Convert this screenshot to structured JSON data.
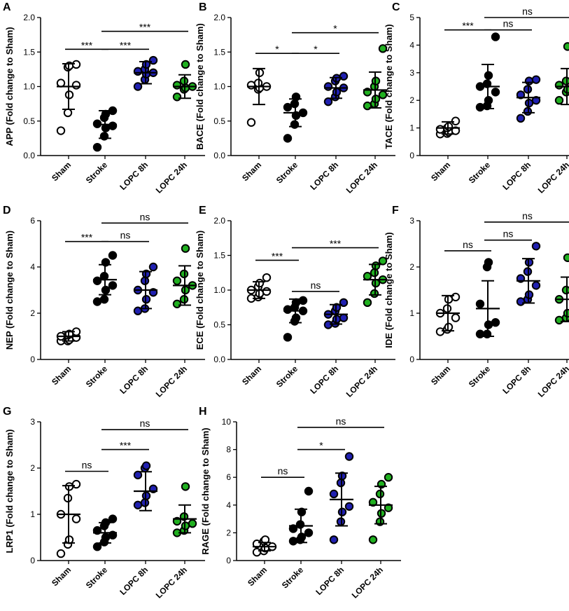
{
  "chart_data": [
    {
      "panel": "A",
      "type": "scatter",
      "ylabel": "APP (Fold change to Sham)",
      "categories": [
        "Sham",
        "Stroke",
        "LOPC 8h",
        "LOPC 24h"
      ],
      "ylim": [
        0,
        2.0
      ],
      "yticks": [
        "0.0",
        "0.5",
        "1.0",
        "1.5",
        "2.0"
      ],
      "groups": [
        {
          "mean": 1.0,
          "sd": 0.33,
          "points": [
            1.32,
            1.3,
            1.28,
            1.05,
            1.02,
            0.88,
            0.62,
            0.36
          ]
        },
        {
          "mean": 0.45,
          "sd": 0.2,
          "points": [
            0.65,
            0.6,
            0.55,
            0.46,
            0.43,
            0.4,
            0.28,
            0.12
          ]
        },
        {
          "mean": 1.2,
          "sd": 0.16,
          "points": [
            1.38,
            1.32,
            1.25,
            1.22,
            1.2,
            1.18,
            1.1,
            1.0
          ]
        },
        {
          "mean": 1.0,
          "sd": 0.17,
          "points": [
            1.32,
            1.08,
            1.02,
            1.0,
            0.98,
            0.96,
            0.85
          ]
        }
      ],
      "comparisons": [
        {
          "from": 0,
          "to": 1,
          "label": "***",
          "y": 1.54
        },
        {
          "from": 1,
          "to": 2,
          "label": "***",
          "y": 1.54
        },
        {
          "from": 1,
          "to": 3,
          "label": "***",
          "y": 1.8
        }
      ]
    },
    {
      "panel": "B",
      "type": "scatter",
      "ylabel": "BACE (Fold change to Sham)",
      "categories": [
        "Sham",
        "Stroke",
        "LOPC 8h",
        "LOPC 24h"
      ],
      "ylim": [
        0,
        2.0
      ],
      "yticks": [
        "0.0",
        "0.5",
        "1.0",
        "1.5",
        "2.0"
      ],
      "groups": [
        {
          "mean": 1.0,
          "sd": 0.26,
          "points": [
            1.2,
            1.05,
            1.02,
            1.0,
            0.98,
            0.96,
            0.48
          ]
        },
        {
          "mean": 0.62,
          "sd": 0.2,
          "points": [
            0.85,
            0.75,
            0.7,
            0.62,
            0.58,
            0.45,
            0.25
          ]
        },
        {
          "mean": 0.98,
          "sd": 0.15,
          "points": [
            1.15,
            1.12,
            1.08,
            1.0,
            0.98,
            0.92,
            0.85,
            0.78
          ]
        },
        {
          "mean": 0.95,
          "sd": 0.26,
          "points": [
            1.55,
            1.08,
            1.0,
            0.92,
            0.88,
            0.82,
            0.75,
            0.72
          ]
        }
      ],
      "comparisons": [
        {
          "from": 0,
          "to": 1,
          "label": "*",
          "y": 1.48
        },
        {
          "from": 1,
          "to": 2,
          "label": "*",
          "y": 1.48
        },
        {
          "from": 1,
          "to": 3,
          "label": "*",
          "y": 1.78
        }
      ]
    },
    {
      "panel": "C",
      "type": "scatter",
      "ylabel": "TACE (Fold change to Sham)",
      "categories": [
        "Sham",
        "Stroke",
        "LOPC 8h",
        "LOPC 24h"
      ],
      "ylim": [
        0,
        5
      ],
      "yticks": [
        "0",
        "1",
        "2",
        "3",
        "4",
        "5"
      ],
      "groups": [
        {
          "mean": 1.0,
          "sd": 0.22,
          "points": [
            1.25,
            1.05,
            1.0,
            0.95,
            0.9,
            0.85,
            0.8,
            0.78
          ]
        },
        {
          "mean": 2.5,
          "sd": 0.8,
          "points": [
            4.3,
            2.9,
            2.6,
            2.5,
            2.3,
            2.0,
            1.8,
            1.75
          ]
        },
        {
          "mean": 2.1,
          "sd": 0.55,
          "points": [
            2.75,
            2.7,
            2.4,
            2.2,
            2.0,
            1.9,
            1.6,
            1.35
          ]
        },
        {
          "mean": 2.5,
          "sd": 0.65,
          "points": [
            3.95,
            2.7,
            2.55,
            2.5,
            2.4,
            2.3,
            2.0
          ]
        }
      ],
      "comparisons": [
        {
          "from": 0,
          "to": 1,
          "label": "***",
          "y": 4.55
        },
        {
          "from": 1,
          "to": 2,
          "label": "ns",
          "y": 4.55
        },
        {
          "from": 1,
          "to": 3,
          "label": "ns",
          "y": 5.0
        }
      ]
    },
    {
      "panel": "D",
      "type": "scatter",
      "ylabel": "NEP (Fold change to Sham)",
      "categories": [
        "Sham",
        "Stroke",
        "LOPC 8h",
        "LOPC 24h"
      ],
      "ylim": [
        0,
        6
      ],
      "yticks": [
        "0",
        "2",
        "4",
        "6"
      ],
      "groups": [
        {
          "mean": 1.0,
          "sd": 0.2,
          "points": [
            1.2,
            1.1,
            1.05,
            1.0,
            0.95,
            0.85,
            0.8,
            0.8
          ]
        },
        {
          "mean": 3.45,
          "sd": 0.65,
          "points": [
            4.5,
            4.2,
            3.6,
            3.4,
            3.2,
            3.0,
            2.6,
            2.5
          ]
        },
        {
          "mean": 3.0,
          "sd": 0.8,
          "points": [
            4.0,
            3.7,
            3.4,
            3.0,
            2.9,
            2.6,
            2.2,
            2.1
          ]
        },
        {
          "mean": 3.2,
          "sd": 0.85,
          "points": [
            4.8,
            3.7,
            3.4,
            3.2,
            3.0,
            2.6,
            2.4
          ]
        }
      ],
      "comparisons": [
        {
          "from": 0,
          "to": 1,
          "label": "***",
          "y": 5.1
        },
        {
          "from": 1,
          "to": 2,
          "label": "ns",
          "y": 5.1
        },
        {
          "from": 1,
          "to": 3,
          "label": "ns",
          "y": 5.9
        }
      ]
    },
    {
      "panel": "E",
      "type": "scatter",
      "ylabel": "ECE (Fold change to Sham)",
      "categories": [
        "Sham",
        "Stroke",
        "LOPC 8h",
        "LOPC 24h"
      ],
      "ylim": [
        0,
        2.0
      ],
      "yticks": [
        "0.0",
        "0.5",
        "1.0",
        "1.5",
        "2.0"
      ],
      "groups": [
        {
          "mean": 1.0,
          "sd": 0.12,
          "points": [
            1.18,
            1.1,
            1.05,
            1.0,
            0.98,
            0.95,
            0.9,
            0.88
          ]
        },
        {
          "mean": 0.7,
          "sd": 0.17,
          "points": [
            0.85,
            0.82,
            0.75,
            0.72,
            0.7,
            0.6,
            0.55,
            0.32
          ]
        },
        {
          "mean": 0.65,
          "sd": 0.14,
          "points": [
            0.82,
            0.75,
            0.7,
            0.65,
            0.6,
            0.58,
            0.52,
            0.5
          ]
        },
        {
          "mean": 1.15,
          "sd": 0.22,
          "points": [
            1.42,
            1.35,
            1.25,
            1.2,
            1.15,
            1.1,
            0.95,
            0.82
          ]
        }
      ],
      "comparisons": [
        {
          "from": 0,
          "to": 1,
          "label": "***",
          "y": 1.43
        },
        {
          "from": 1,
          "to": 2,
          "label": "ns",
          "y": 0.98
        },
        {
          "from": 1,
          "to": 3,
          "label": "***",
          "y": 1.61
        }
      ]
    },
    {
      "panel": "F",
      "type": "scatter",
      "ylabel": "IDE (Fold change to Sham)",
      "categories": [
        "Sham",
        "Stroke",
        "LOPC 8h",
        "LOPC 24h"
      ],
      "ylim": [
        0,
        3
      ],
      "yticks": [
        "0",
        "1",
        "2",
        "3"
      ],
      "groups": [
        {
          "mean": 1.0,
          "sd": 0.38,
          "points": [
            1.35,
            1.3,
            1.1,
            1.0,
            0.9,
            0.7,
            0.65,
            0.6
          ]
        },
        {
          "mean": 1.1,
          "sd": 0.6,
          "points": [
            2.1,
            2.0,
            1.2,
            0.8,
            0.75,
            0.55,
            0.55
          ]
        },
        {
          "mean": 1.7,
          "sd": 0.48,
          "points": [
            2.45,
            2.1,
            1.9,
            1.75,
            1.6,
            1.4,
            1.3,
            1.25
          ]
        },
        {
          "mean": 1.3,
          "sd": 0.48,
          "points": [
            2.2,
            1.5,
            1.3,
            1.1,
            1.0,
            0.9,
            0.85
          ]
        }
      ],
      "comparisons": [
        {
          "from": 0,
          "to": 1,
          "label": "ns",
          "y": 2.35
        },
        {
          "from": 1,
          "to": 2,
          "label": "ns",
          "y": 2.58
        },
        {
          "from": 1,
          "to": 3,
          "label": "ns",
          "y": 2.97
        }
      ]
    },
    {
      "panel": "G",
      "type": "scatter",
      "ylabel": "LRP1 (Fold change to Sham)",
      "categories": [
        "Sham",
        "Stroke",
        "LOPC 8h",
        "LOPC 24h"
      ],
      "ylim": [
        0,
        3
      ],
      "yticks": [
        "0",
        "1",
        "2",
        "3"
      ],
      "groups": [
        {
          "mean": 1.0,
          "sd": 0.62,
          "points": [
            1.65,
            1.6,
            1.35,
            1.0,
            0.9,
            0.45,
            0.35,
            0.15
          ]
        },
        {
          "mean": 0.6,
          "sd": 0.22,
          "points": [
            0.9,
            0.82,
            0.75,
            0.65,
            0.55,
            0.5,
            0.4,
            0.3
          ]
        },
        {
          "mean": 1.5,
          "sd": 0.42,
          "points": [
            2.05,
            2.0,
            1.85,
            1.55,
            1.4,
            1.25,
            1.2
          ]
        },
        {
          "mean": 0.9,
          "sd": 0.3,
          "points": [
            1.6,
            0.95,
            0.85,
            0.8,
            0.75,
            0.65,
            0.6
          ]
        }
      ],
      "comparisons": [
        {
          "from": 0,
          "to": 1,
          "label": "ns",
          "y": 1.93
        },
        {
          "from": 1,
          "to": 2,
          "label": "***",
          "y": 2.4
        },
        {
          "from": 1,
          "to": 3,
          "label": "ns",
          "y": 2.83
        }
      ]
    },
    {
      "panel": "H",
      "type": "scatter",
      "ylabel": "RAGE (Fold change to Sham)",
      "categories": [
        "Sham",
        "Stroke",
        "LOPC 8h",
        "LOPC 24h"
      ],
      "ylim": [
        0,
        10
      ],
      "yticks": [
        "0",
        "2",
        "4",
        "6",
        "8",
        "10"
      ],
      "groups": [
        {
          "mean": 1.0,
          "sd": 0.3,
          "points": [
            1.5,
            1.4,
            1.2,
            1.0,
            0.9,
            0.7,
            0.6
          ]
        },
        {
          "mean": 2.5,
          "sd": 1.2,
          "points": [
            5.0,
            3.5,
            2.6,
            2.3,
            2.0,
            1.7,
            1.5,
            1.4
          ]
        },
        {
          "mean": 4.4,
          "sd": 1.9,
          "points": [
            7.5,
            6.1,
            5.6,
            4.8,
            3.9,
            3.5,
            2.8,
            1.5
          ]
        },
        {
          "mean": 4.0,
          "sd": 1.35,
          "points": [
            6.0,
            5.5,
            4.8,
            4.2,
            3.8,
            3.4,
            2.8,
            1.5
          ]
        }
      ],
      "comparisons": [
        {
          "from": 0,
          "to": 1,
          "label": "ns",
          "y": 6.0
        },
        {
          "from": 1,
          "to": 2,
          "label": "*",
          "y": 8.0
        },
        {
          "from": 1,
          "to": 3,
          "label": "ns",
          "y": 9.6
        }
      ]
    }
  ],
  "colors": {
    "sham_fill": "#ffffff",
    "stroke_fill": "#000000",
    "lopc8_fill": "#2020b0",
    "lopc24_fill": "#20b020",
    "outline": "#000000"
  }
}
